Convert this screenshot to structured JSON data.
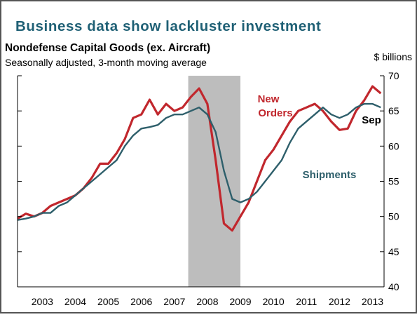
{
  "chart_data": {
    "type": "line",
    "title": "Business data show lackluster investment",
    "subtitle": "Nondefense Capital Goods (ex. Aircraft)",
    "note": "Seasonally adjusted, 3-month moving average",
    "y_axis_label": "$ billions",
    "x": [
      2002.75,
      2003,
      2003.25,
      2003.5,
      2003.75,
      2004,
      2004.25,
      2004.5,
      2004.75,
      2005,
      2005.25,
      2005.5,
      2005.75,
      2006,
      2006.25,
      2006.5,
      2006.75,
      2007,
      2007.25,
      2007.5,
      2007.75,
      2008,
      2008.25,
      2008.5,
      2008.75,
      2009,
      2009.25,
      2009.5,
      2009.75,
      2010,
      2010.25,
      2010.5,
      2010.75,
      2011,
      2011.25,
      2011.5,
      2011.75,
      2012,
      2012.25,
      2012.5,
      2012.75,
      2013,
      2013.25,
      2013.5,
      2013.75
    ],
    "series": [
      {
        "name": "New Orders",
        "color": "#c1272d",
        "values": [
          49.7,
          50.4,
          50,
          50.5,
          51.5,
          52,
          52.5,
          53,
          54,
          55.5,
          57.5,
          57.5,
          59,
          61,
          64,
          64.5,
          66.6,
          64.5,
          66,
          65,
          65.5,
          67,
          68.2,
          66,
          58,
          49,
          48,
          50,
          52,
          55,
          58,
          59.5,
          61.5,
          63.5,
          65,
          65.5,
          66,
          65,
          63.5,
          62.3,
          62.5,
          65,
          66.5,
          68.5,
          67.5
        ]
      },
      {
        "name": "Shipments",
        "color": "#2e5f6b",
        "values": [
          49.5,
          49.7,
          50,
          50.5,
          50.5,
          51.5,
          52,
          53,
          54,
          55,
          56,
          57,
          58,
          60,
          61.5,
          62.5,
          62.7,
          63,
          64,
          64.5,
          64.5,
          65,
          65.5,
          64.5,
          62,
          56.5,
          52.5,
          52,
          52.5,
          53.5,
          55,
          56.5,
          58,
          60.5,
          62.5,
          63.5,
          64.5,
          65.5,
          64.5,
          64,
          64.5,
          65.5,
          66,
          66,
          65.5
        ]
      }
    ],
    "annotations": [
      [
        "New",
        "Orders"
      ],
      [
        "Shipments"
      ],
      [
        "Sep"
      ]
    ],
    "shaded_regions": [
      [
        2007.92,
        2009.5
      ]
    ],
    "shade_color": "#bdbdbd",
    "xlim": [
      2002.75,
      2013.85
    ],
    "xticks": [
      {
        "value": 2003.5,
        "label": "2003"
      },
      {
        "value": 2004.5,
        "label": "2004"
      },
      {
        "value": 2005.5,
        "label": "2005"
      },
      {
        "value": 2006.5,
        "label": "2006"
      },
      {
        "value": 2007.5,
        "label": "2007"
      },
      {
        "value": 2008.5,
        "label": "2008"
      },
      {
        "value": 2009.5,
        "label": "2009"
      },
      {
        "value": 2010.5,
        "label": "2010"
      },
      {
        "value": 2011.5,
        "label": "2011"
      },
      {
        "value": 2012.5,
        "label": "2012"
      },
      {
        "value": 2013.5,
        "label": "2013"
      }
    ],
    "ylim": [
      40,
      70
    ],
    "yticks": [
      40,
      45,
      50,
      55,
      60,
      65,
      70
    ],
    "grid": false
  }
}
